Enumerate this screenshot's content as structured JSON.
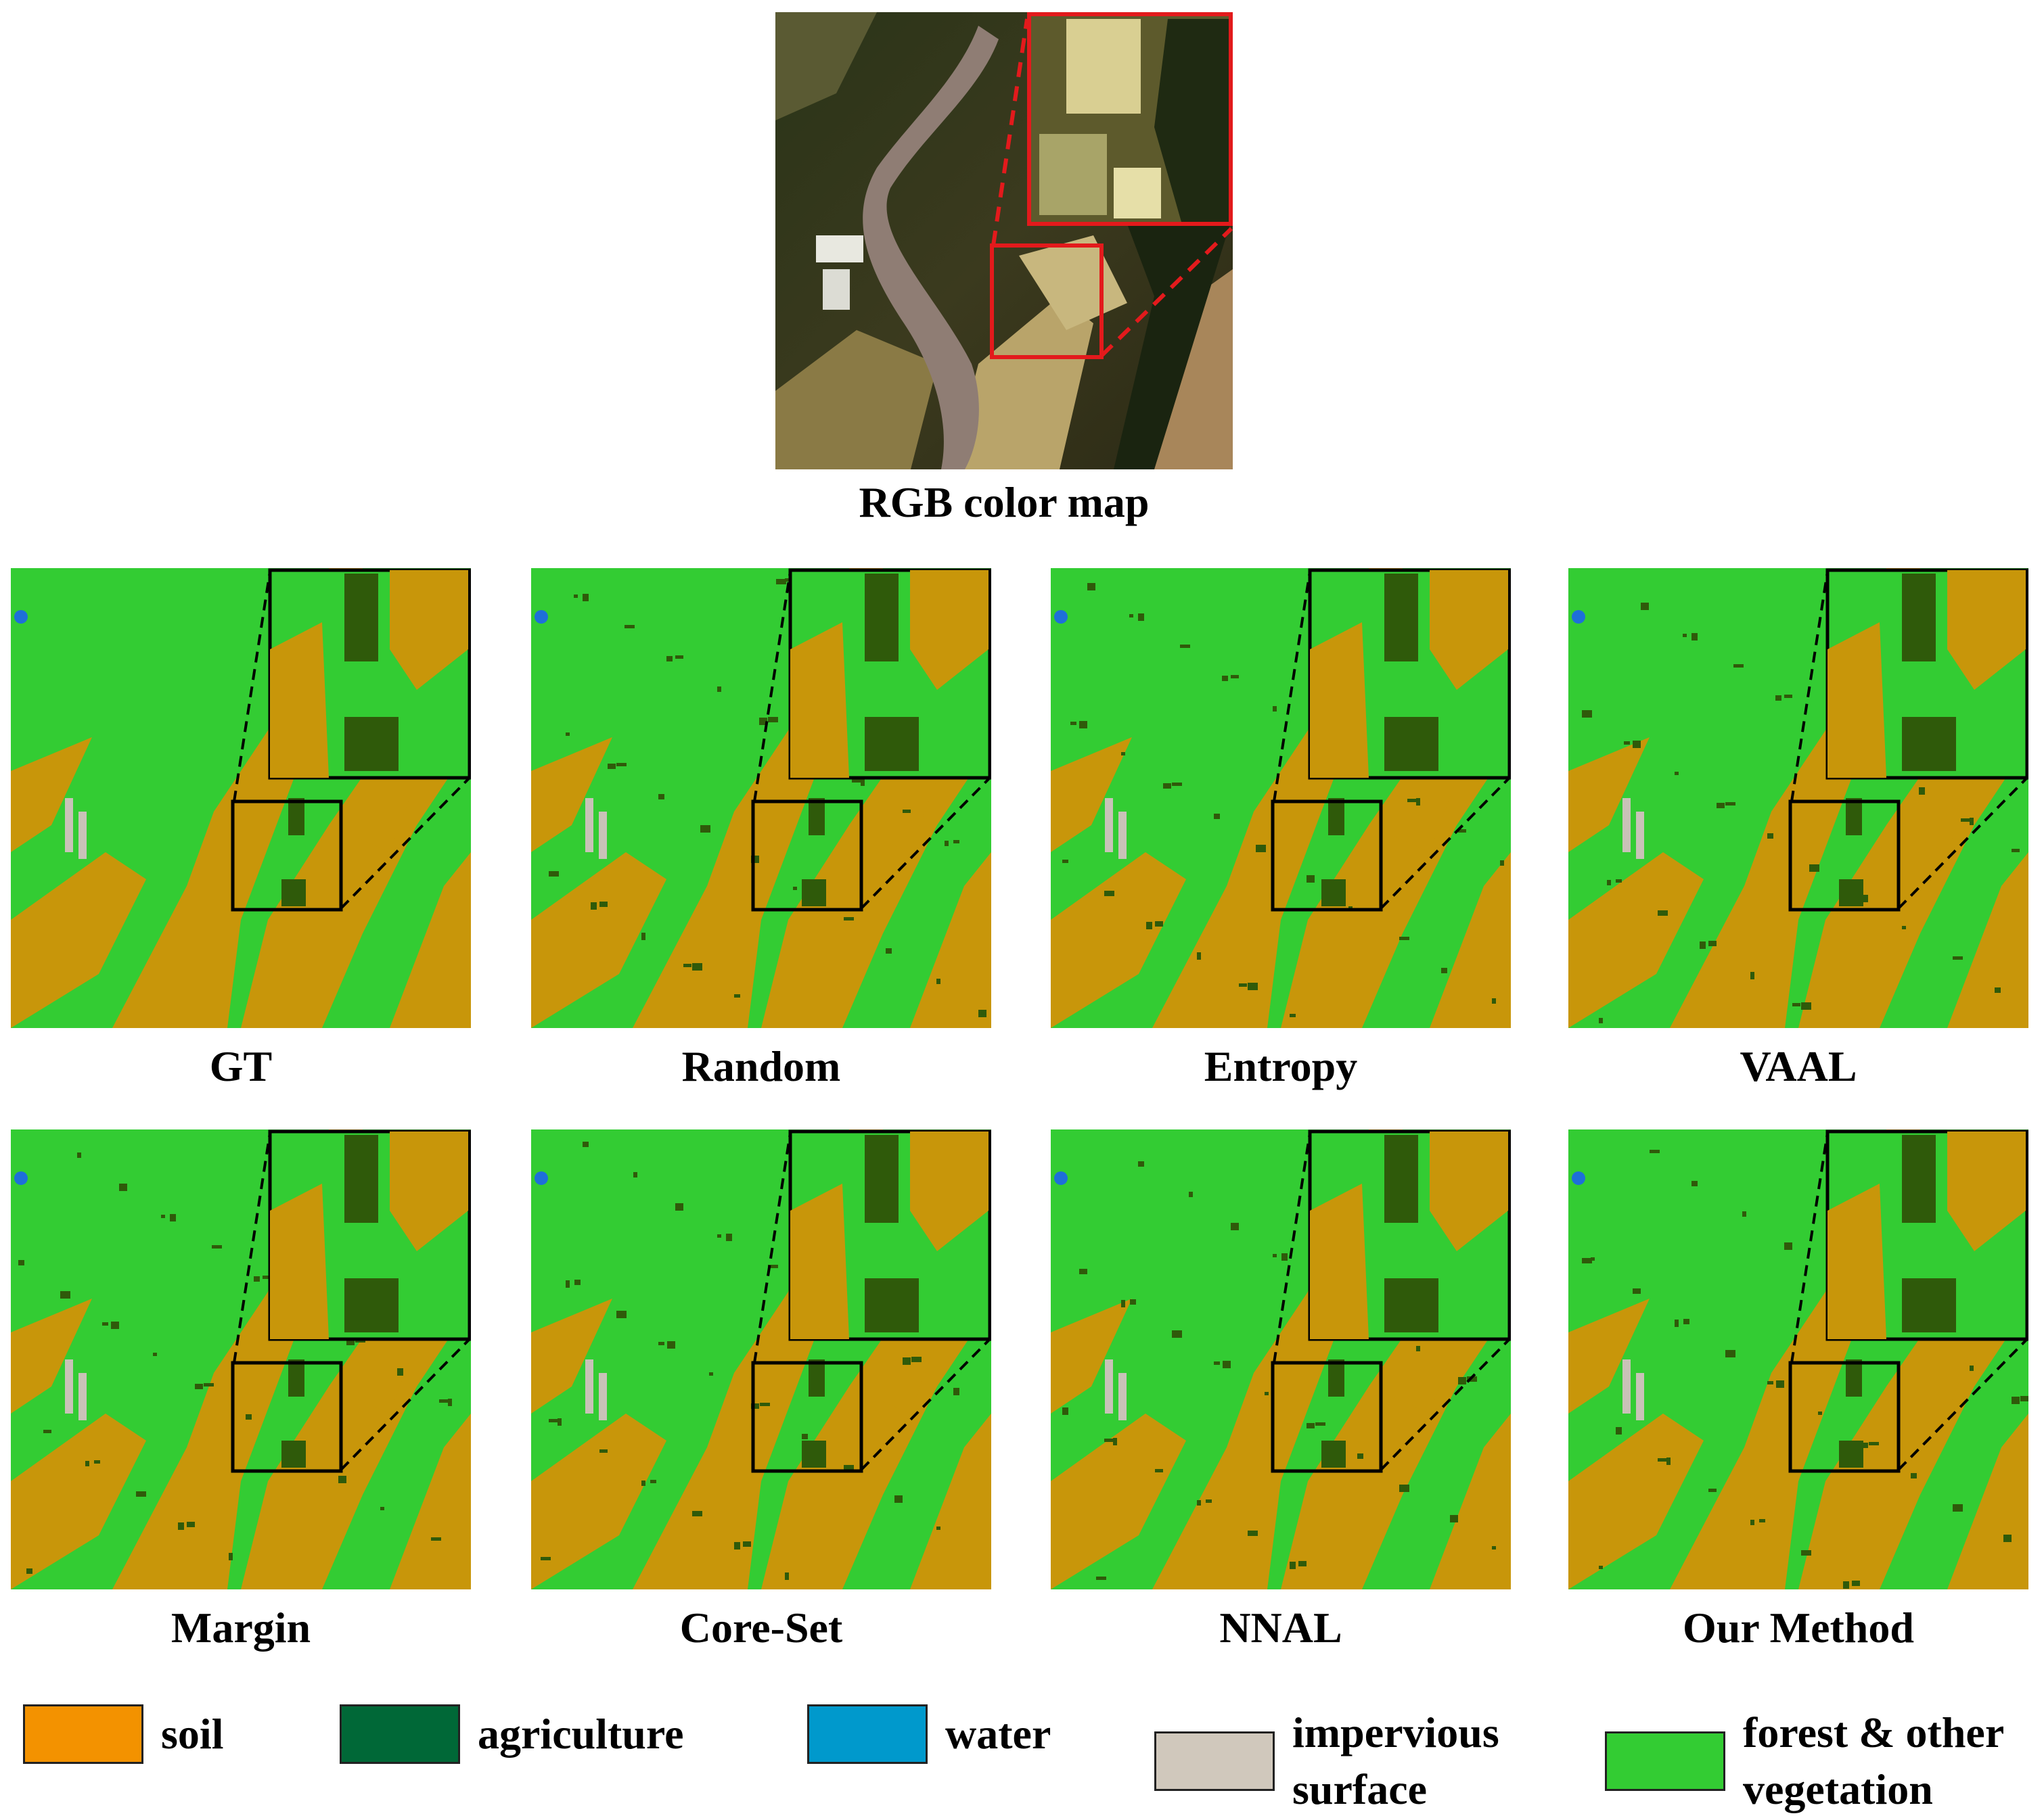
{
  "rgb_panel": {
    "caption": "RGB color map",
    "zoom_box_color": "#e31a1c"
  },
  "panels": [
    {
      "caption": "GT"
    },
    {
      "caption": "Random"
    },
    {
      "caption": "Entropy"
    },
    {
      "caption": "VAAL"
    },
    {
      "caption": "Margin"
    },
    {
      "caption": "Core-Set"
    },
    {
      "caption": "NNAL"
    },
    {
      "caption": "Our Method"
    }
  ],
  "legend": [
    {
      "label": "soil",
      "color": "#f39200"
    },
    {
      "label": "agriculture",
      "color": "#006837"
    },
    {
      "label": "water",
      "color": "#0099cc"
    },
    {
      "label": "impervious\nsurface",
      "color": "#d0c8bc"
    },
    {
      "label": "forest & other\nvegetation",
      "color": "#33cc33"
    }
  ],
  "colors": {
    "map_soil": "#c8960a",
    "map_vegetation": "#33cc33",
    "map_agriculture": "#2f5a0a",
    "map_water": "#1e6fd9",
    "map_impervious": "#c9c2b8"
  }
}
